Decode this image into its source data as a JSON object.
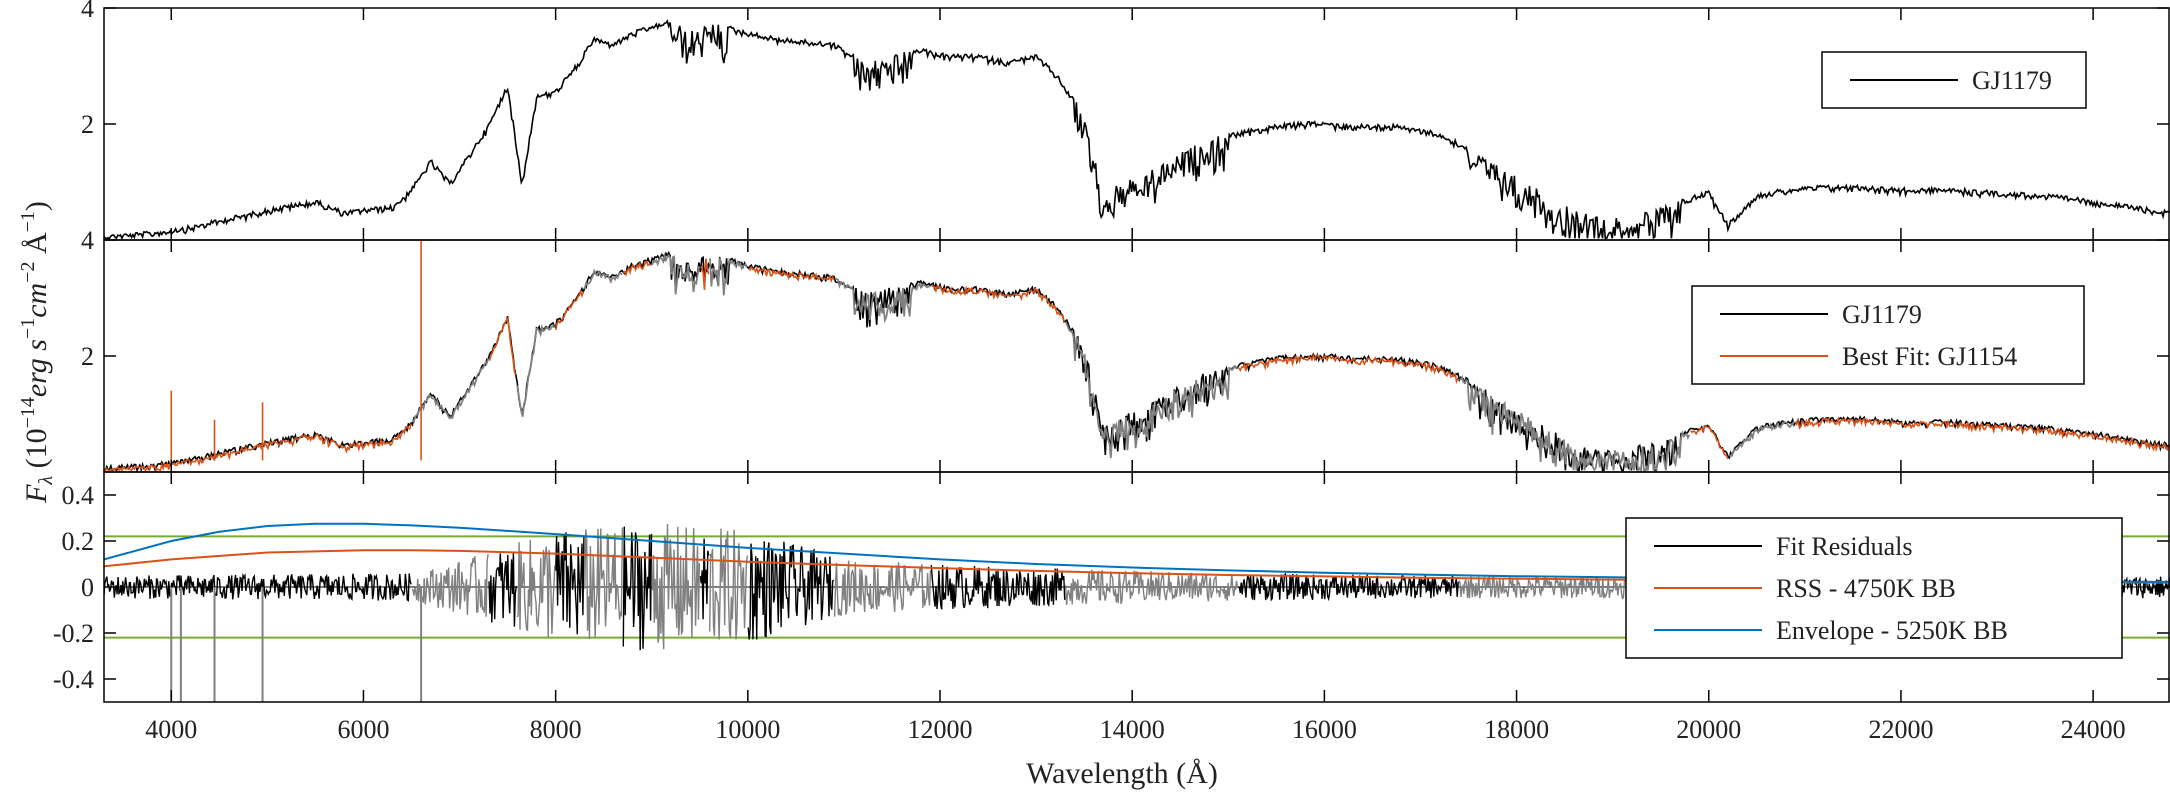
{
  "chart_data": {
    "type": "line",
    "x_label": "Wavelength (Å)",
    "y_label": "F_λ (10^-14 erg s^-1 cm^-2 Å^-1)",
    "y_label_parts": {
      "main": "F",
      "sub": "λ",
      "p1": " (10",
      "e1": "−14",
      "p2": "erg s",
      "e2": "−1",
      "p3": "cm",
      "e3": "−2",
      "p4": " Å",
      "e4": "−1",
      "p5": ")"
    },
    "x_range": [
      3300,
      24800
    ],
    "x_ticks": [
      4000,
      6000,
      8000,
      10000,
      12000,
      14000,
      16000,
      18000,
      20000,
      22000,
      24000
    ],
    "x_tick_labels": [
      "4000",
      "6000",
      "8000",
      "10000",
      "12000",
      "14000",
      "16000",
      "18000",
      "20000",
      "22000",
      "24000"
    ],
    "colors": {
      "black": "#000000",
      "gray": "#808080",
      "orange": "#D95319",
      "blue": "#0072BD",
      "green": "#77AC30"
    },
    "panels": [
      {
        "id": "top",
        "y_range": [
          0,
          4
        ],
        "y_ticks": [
          2,
          4
        ],
        "y_tick_labels": [
          "2",
          "4"
        ],
        "legend": [
          "GJ1179"
        ],
        "series": [
          {
            "name": "GJ1179",
            "color": "#000000",
            "x": [
              3300,
              3800,
              4200,
              4600,
              5000,
              5500,
              5800,
              6000,
              6300,
              6500,
              6700,
              6900,
              7100,
              7300,
              7500,
              7650,
              7800,
              8000,
              8200,
              8400,
              8600,
              8800,
              9000,
              9200,
              9400,
              9600,
              9800,
              10000,
              10300,
              10600,
              10900,
              11200,
              11500,
              11800,
              12100,
              12400,
              12700,
              13000,
              13200,
              13500,
              13700,
              13900,
              14100,
              14300,
              14600,
              14900,
              15200,
              15500,
              15900,
              16300,
              16700,
              17100,
              17400,
              17800,
              18200,
              18600,
              19000,
              19400,
              19700,
              20000,
              20200,
              20500,
              20800,
              21200,
              21600,
              22000,
              22500,
              23000,
              23500,
              24000,
              24800
            ],
            "y": [
              0.1,
              0.15,
              0.25,
              0.4,
              0.55,
              0.7,
              0.5,
              0.55,
              0.6,
              0.9,
              1.4,
              1.0,
              1.5,
              2.0,
              2.7,
              1.0,
              2.5,
              2.6,
              3.0,
              3.5,
              3.4,
              3.6,
              3.7,
              3.8,
              3.6,
              3.75,
              3.7,
              3.6,
              3.5,
              3.45,
              3.4,
              3.1,
              3.2,
              3.3,
              3.2,
              3.2,
              3.1,
              3.2,
              2.9,
              2.2,
              0.8,
              1.0,
              1.1,
              1.3,
              1.6,
              1.8,
              1.9,
              2.0,
              2.05,
              2.0,
              2.0,
              1.9,
              1.7,
              1.3,
              0.9,
              0.5,
              0.4,
              0.5,
              0.7,
              0.85,
              0.3,
              0.8,
              0.9,
              0.95,
              0.95,
              0.9,
              0.9,
              0.85,
              0.8,
              0.7,
              0.5
            ]
          }
        ]
      },
      {
        "id": "middle",
        "y_range": [
          0,
          4
        ],
        "y_ticks": [
          2,
          4
        ],
        "y_tick_labels": [
          "2",
          "4"
        ],
        "legend": [
          "GJ1179",
          "Best Fit: GJ1154"
        ],
        "series": [
          {
            "name": "GJ1179",
            "color": "#000000",
            "x": [
              3300,
              3800,
              4200,
              4600,
              5000,
              5500,
              5800,
              6000,
              6300,
              6500,
              6700,
              6900,
              7100,
              7300,
              7500,
              7650,
              7800,
              8000,
              8200,
              8400,
              8600,
              8800,
              9000,
              9200,
              9400,
              9600,
              9800,
              10000,
              10300,
              10600,
              10900,
              11200,
              11500,
              11800,
              12100,
              12400,
              12700,
              13000,
              13200,
              13500,
              13700,
              13900,
              14100,
              14300,
              14600,
              14900,
              15200,
              15500,
              15900,
              16300,
              16700,
              17100,
              17400,
              17800,
              18200,
              18600,
              19000,
              19400,
              19700,
              20000,
              20200,
              20500,
              20800,
              21200,
              21600,
              22000,
              22500,
              23000,
              23500,
              24000,
              24800
            ],
            "y": [
              0.1,
              0.15,
              0.25,
              0.4,
              0.55,
              0.7,
              0.5,
              0.55,
              0.6,
              0.9,
              1.4,
              1.0,
              1.5,
              2.0,
              2.7,
              1.0,
              2.5,
              2.6,
              3.0,
              3.5,
              3.4,
              3.6,
              3.7,
              3.8,
              3.6,
              3.75,
              3.7,
              3.6,
              3.5,
              3.45,
              3.4,
              3.1,
              3.2,
              3.3,
              3.2,
              3.2,
              3.1,
              3.2,
              2.9,
              2.2,
              0.8,
              1.0,
              1.1,
              1.3,
              1.6,
              1.8,
              1.9,
              2.0,
              2.05,
              2.0,
              2.0,
              1.9,
              1.7,
              1.3,
              0.9,
              0.5,
              0.4,
              0.5,
              0.7,
              0.85,
              0.3,
              0.8,
              0.9,
              0.95,
              0.95,
              0.9,
              0.9,
              0.85,
              0.8,
              0.7,
              0.5
            ]
          },
          {
            "name": "Best Fit: GJ1154",
            "color": "#D95319",
            "x": [
              3300,
              3800,
              4200,
              4600,
              5000,
              5500,
              5800,
              6000,
              6300,
              6500,
              6700,
              6900,
              7100,
              7300,
              7500,
              7650,
              7800,
              8000,
              8200,
              8400,
              8600,
              8800,
              9000,
              9200,
              9400,
              9600,
              9800,
              10000,
              10300,
              10600,
              10900,
              11200,
              11500,
              11800,
              12100,
              12400,
              12700,
              13000,
              13200,
              13500,
              13700,
              13900,
              14100,
              14300,
              14600,
              14900,
              15200,
              15500,
              15900,
              16300,
              16700,
              17100,
              17400,
              17800,
              18200,
              18600,
              19000,
              19400,
              19700,
              20000,
              20200,
              20500,
              20800,
              21200,
              21600,
              22000,
              22500,
              23000,
              23500,
              24000,
              24800
            ],
            "y": [
              0.1,
              0.15,
              0.25,
              0.4,
              0.55,
              0.7,
              0.5,
              0.55,
              0.6,
              0.9,
              1.4,
              1.0,
              1.5,
              2.0,
              2.7,
              1.0,
              2.5,
              2.6,
              3.0,
              3.5,
              3.4,
              3.6,
              3.7,
              3.8,
              3.6,
              3.75,
              3.7,
              3.6,
              3.5,
              3.45,
              3.4,
              3.1,
              3.2,
              3.3,
              3.2,
              3.2,
              3.1,
              3.2,
              2.9,
              2.2,
              0.8,
              1.0,
              1.1,
              1.3,
              1.6,
              1.8,
              1.9,
              2.0,
              2.05,
              2.0,
              2.0,
              1.9,
              1.7,
              1.3,
              0.9,
              0.5,
              0.4,
              0.5,
              0.7,
              0.85,
              0.3,
              0.8,
              0.9,
              0.95,
              0.95,
              0.9,
              0.9,
              0.85,
              0.8,
              0.7,
              0.5
            ]
          }
        ],
        "excluded_regions_gray": [
          [
            6500,
            7300
          ],
          [
            7600,
            8000
          ],
          [
            8300,
            8700
          ],
          [
            9000,
            9500
          ],
          [
            9600,
            10000
          ],
          [
            10900,
            11900
          ],
          [
            13300,
            15100
          ],
          [
            17400,
            19800
          ],
          [
            20200,
            20900
          ]
        ],
        "emission_spikes": [
          {
            "x": 4000,
            "y": 1.4
          },
          {
            "x": 4450,
            "y": 0.9
          },
          {
            "x": 4950,
            "y": 1.2
          },
          {
            "x": 6600,
            "y": 4.0
          }
        ]
      },
      {
        "id": "bottom",
        "y_range": [
          -0.5,
          0.5
        ],
        "y_ticks": [
          -0.4,
          -0.2,
          0,
          0.2,
          0.4
        ],
        "y_tick_labels": [
          "-0.4",
          "-0.2",
          "0",
          "0.2",
          "0.4"
        ],
        "legend": [
          "Fit Residuals",
          "RSS - 4750K BB",
          "Envelope - 5250K BB"
        ],
        "series": [
          {
            "name": "Fit Residuals",
            "color": "#000000",
            "note_amplitude": [
              [
                3300,
                0.05
              ],
              [
                6500,
                0.06
              ],
              [
                7300,
                0.15
              ],
              [
                8000,
                0.25
              ],
              [
                9000,
                0.28
              ],
              [
                10000,
                0.25
              ],
              [
                11000,
                0.12
              ],
              [
                12000,
                0.1
              ],
              [
                13300,
                0.08
              ],
              [
                15100,
                0.06
              ],
              [
                17000,
                0.05
              ],
              [
                19800,
                0.05
              ],
              [
                22000,
                0.04
              ],
              [
                24800,
                0.05
              ]
            ]
          },
          {
            "name": "RSS - 4750K BB",
            "color": "#D95319",
            "x": [
              3300,
              4000,
              5000,
              6000,
              6500,
              7000,
              8000,
              9000,
              10000,
              11000,
              12000,
              13000,
              14000,
              15000,
              16000,
              17000,
              18000,
              19000,
              20000,
              21000,
              22000,
              23000,
              24000,
              24800
            ],
            "y": [
              0.09,
              0.12,
              0.15,
              0.16,
              0.16,
              0.157,
              0.145,
              0.128,
              0.11,
              0.095,
              0.082,
              0.07,
              0.06,
              0.052,
              0.046,
              0.04,
              0.036,
              0.032,
              0.029,
              0.026,
              0.024,
              0.022,
              0.02,
              0.019
            ]
          },
          {
            "name": "Envelope - 5250K BB",
            "color": "#0072BD",
            "x": [
              3300,
              4000,
              4500,
              5000,
              5500,
              6000,
              6500,
              7000,
              8000,
              9000,
              10000,
              11000,
              12000,
              13000,
              14000,
              15000,
              16000,
              17000,
              18000,
              19000,
              20000,
              21000,
              22000,
              23000,
              24000,
              24800
            ],
            "y": [
              0.12,
              0.2,
              0.24,
              0.265,
              0.275,
              0.275,
              0.268,
              0.258,
              0.23,
              0.2,
              0.17,
              0.145,
              0.12,
              0.1,
              0.085,
              0.072,
              0.062,
              0.054,
              0.047,
              0.042,
              0.037,
              0.033,
              0.03,
              0.027,
              0.024,
              0.022
            ]
          }
        ],
        "thresholds": [
          0.22,
          -0.22
        ]
      }
    ]
  }
}
